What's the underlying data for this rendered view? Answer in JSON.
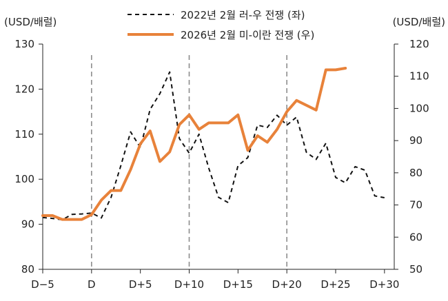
{
  "chart_data": {
    "type": "line",
    "left_axis_unit": "(USD/배럴)",
    "right_axis_unit": "(USD/배럴)",
    "x_ticks": [
      {
        "x": -5,
        "label": "D−5"
      },
      {
        "x": 0,
        "label": "D"
      },
      {
        "x": 5,
        "label": "D+5"
      },
      {
        "x": 10,
        "label": "D+10"
      },
      {
        "x": 15,
        "label": "D+15"
      },
      {
        "x": 20,
        "label": "D+20"
      },
      {
        "x": 25,
        "label": "D+25"
      },
      {
        "x": 30,
        "label": "D+30"
      }
    ],
    "xlim": [
      -5,
      31
    ],
    "ylim_left": [
      80,
      130
    ],
    "ylim_right": [
      50,
      120
    ],
    "left_ticks": [
      80,
      90,
      100,
      110,
      120,
      130
    ],
    "right_ticks": [
      50,
      60,
      70,
      80,
      90,
      100,
      110,
      120
    ],
    "reference_lines_x": [
      0,
      10,
      20
    ],
    "series": [
      {
        "name": "2022년 2월 러-우 전쟁 (좌)",
        "axis": "left",
        "color": "#111111",
        "style": "dashed",
        "x": [
          -5,
          -4,
          -3,
          -2,
          -1,
          0,
          1,
          2,
          3,
          4,
          5,
          6,
          7,
          8,
          9,
          10,
          11,
          12,
          13,
          14,
          15,
          16,
          17,
          18,
          19,
          20,
          21,
          22,
          23,
          24,
          25,
          26,
          27,
          28,
          29,
          30
        ],
        "values": [
          91.5,
          91.3,
          91.0,
          92.2,
          92.3,
          92.5,
          91.4,
          96.0,
          103.0,
          110.5,
          107.0,
          115.5,
          119.0,
          123.8,
          109.0,
          105.8,
          110.0,
          102.5,
          96.0,
          94.8,
          103.0,
          104.8,
          112.0,
          111.5,
          114.2,
          112.0,
          113.8,
          106.0,
          104.4,
          108.0,
          100.4,
          99.2,
          102.8,
          102.0,
          96.3,
          95.9
        ]
      },
      {
        "name": "2026년 2월 미-이란 전쟁 (우)",
        "axis": "right",
        "color": "#e8823a",
        "style": "solid",
        "x": [
          -5,
          -4,
          -3,
          -2,
          -1,
          0,
          1,
          2,
          3,
          4,
          5,
          6,
          7,
          8,
          9,
          10,
          11,
          12,
          13,
          14,
          15,
          16,
          17,
          18,
          19,
          20,
          21,
          22,
          23,
          24,
          25,
          26
        ],
        "values": [
          66.7,
          66.7,
          65.5,
          65.5,
          65.5,
          67.0,
          71.5,
          74.5,
          74.5,
          81.0,
          89.0,
          93.0,
          83.5,
          86.5,
          95.0,
          98.0,
          93.5,
          95.5,
          95.5,
          95.5,
          98.0,
          87.0,
          91.5,
          89.5,
          93.5,
          99.0,
          102.5,
          101.0,
          99.5,
          112.0,
          112.0,
          112.5
        ]
      }
    ]
  }
}
